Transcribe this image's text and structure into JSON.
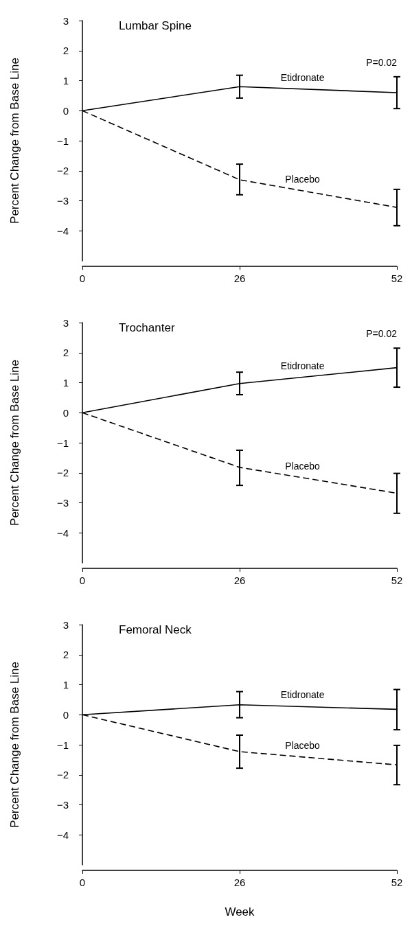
{
  "chart_data": [
    {
      "type": "line",
      "title": "Lumbar Spine",
      "ylabel": "Percent Change from Base Line",
      "x": [
        0,
        26,
        52
      ],
      "xlim": [
        0,
        52
      ],
      "xticks": [
        0,
        26,
        52
      ],
      "ylim": [
        -5,
        3
      ],
      "yticks": [
        3,
        2,
        1,
        0,
        -1,
        -2,
        -3,
        -4
      ],
      "legend": false,
      "marker": "none",
      "series": [
        {
          "name": "Etidronate",
          "color": "#000000",
          "line_style": "solid",
          "values": [
            0,
            0.8,
            0.6
          ],
          "errors": [
            null,
            [
              0.42,
              1.18
            ],
            [
              0.07,
              1.13
            ]
          ]
        },
        {
          "name": "Placebo",
          "color": "#000000",
          "line_style": "dashed",
          "values": [
            0,
            -2.3,
            -3.22
          ],
          "errors": [
            null,
            [
              -2.8,
              -1.78
            ],
            [
              -3.83,
              -2.62
            ]
          ]
        }
      ],
      "annotations": [
        {
          "text": "P=0.02",
          "x": 52,
          "y": 1.13
        }
      ]
    },
    {
      "type": "line",
      "title": "Trochanter",
      "ylabel": "Percent Change from Base Line",
      "x": [
        0,
        26,
        52
      ],
      "xlim": [
        0,
        52
      ],
      "xticks": [
        0,
        26,
        52
      ],
      "ylim": [
        -5,
        3
      ],
      "yticks": [
        3,
        2,
        1,
        0,
        -1,
        -2,
        -3,
        -4
      ],
      "legend": false,
      "marker": "none",
      "series": [
        {
          "name": "Etidronate",
          "color": "#000000",
          "line_style": "solid",
          "values": [
            0,
            0.97,
            1.5
          ],
          "errors": [
            null,
            [
              0.6,
              1.35
            ],
            [
              0.85,
              2.15
            ]
          ]
        },
        {
          "name": "Placebo",
          "color": "#000000",
          "line_style": "dashed",
          "values": [
            0,
            -1.82,
            -2.68
          ],
          "errors": [
            null,
            [
              -2.42,
              -1.25
            ],
            [
              -3.35,
              -2.02
            ]
          ]
        }
      ],
      "annotations": [
        {
          "text": "P=0.02",
          "x": 52,
          "y": 2.15
        }
      ]
    },
    {
      "type": "line",
      "title": "Femoral Neck",
      "ylabel": "Percent Change from Base Line",
      "xlabel": "Week",
      "x": [
        0,
        26,
        52
      ],
      "xlim": [
        0,
        52
      ],
      "xticks": [
        0,
        26,
        52
      ],
      "ylim": [
        -5,
        3
      ],
      "yticks": [
        3,
        2,
        1,
        0,
        -1,
        -2,
        -3,
        -4
      ],
      "legend": false,
      "marker": "none",
      "series": [
        {
          "name": "Etidronate",
          "color": "#000000",
          "line_style": "solid",
          "values": [
            0,
            0.33,
            0.18
          ],
          "errors": [
            null,
            [
              -0.1,
              0.77
            ],
            [
              -0.5,
              0.84
            ]
          ]
        },
        {
          "name": "Placebo",
          "color": "#000000",
          "line_style": "dashed",
          "values": [
            0,
            -1.23,
            -1.67
          ],
          "errors": [
            null,
            [
              -1.78,
              -0.68
            ],
            [
              -2.33,
              -1.02
            ]
          ]
        }
      ]
    }
  ]
}
